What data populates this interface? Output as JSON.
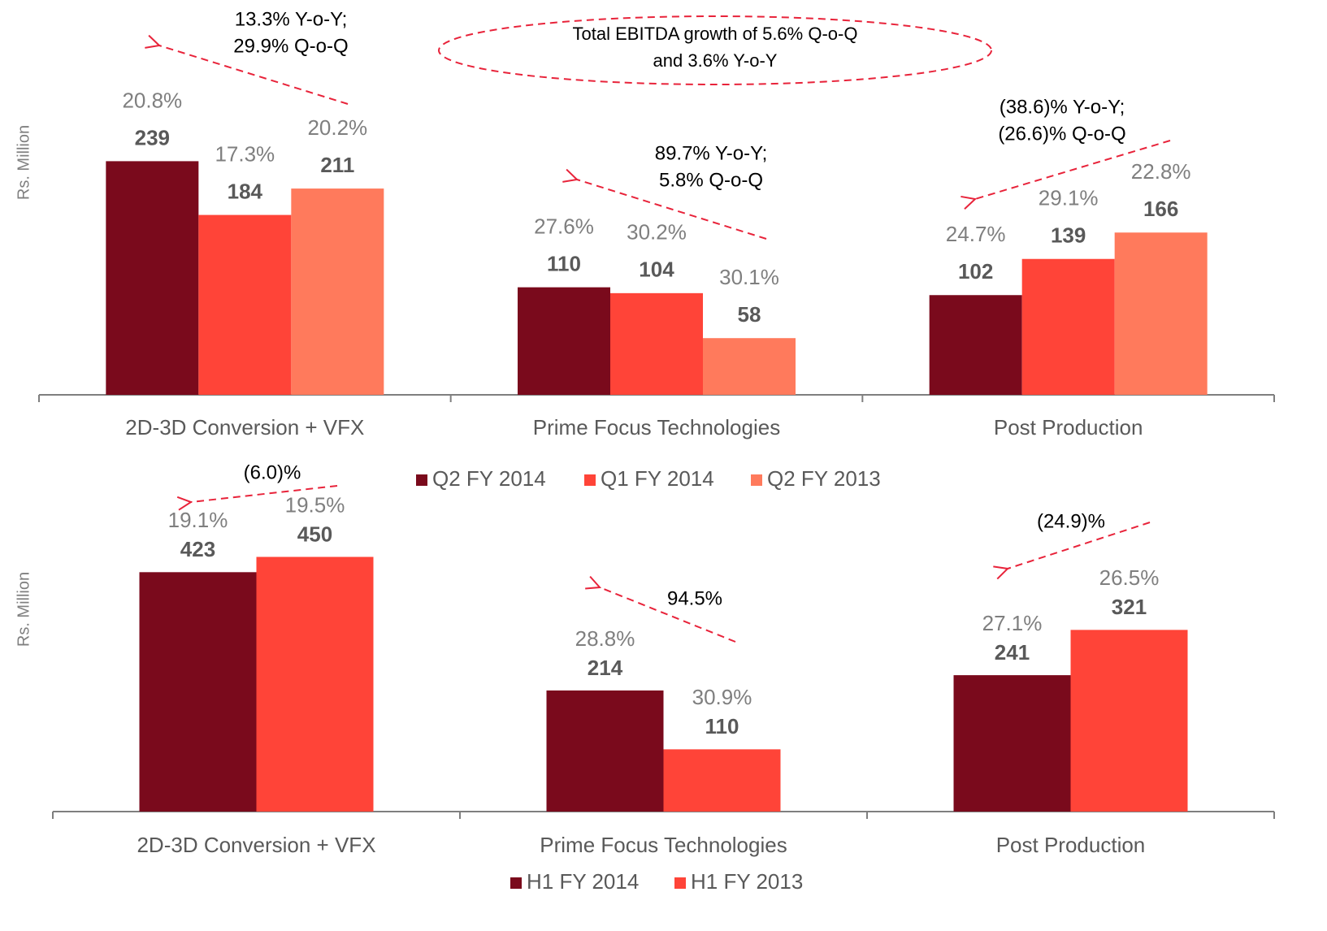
{
  "chart_data": [
    {
      "type": "bar",
      "y_label": "Rs. Million",
      "categories": [
        "2D-3D Conversion + VFX",
        "Prime Focus Technologies",
        "Post Production"
      ],
      "series": [
        {
          "name": "Q2 FY 2014",
          "color": "#7a0a1c",
          "values": [
            239,
            110,
            102
          ],
          "margin_labels": [
            "20.8%",
            "27.6%",
            "24.7%"
          ]
        },
        {
          "name": "Q1 FY 2014",
          "color": "#ff4438",
          "values": [
            184,
            104,
            139
          ],
          "margin_labels": [
            "17.3%",
            "30.2%",
            "29.1%"
          ]
        },
        {
          "name": "Q2 FY 2013",
          "color": "#ff7a5c",
          "values": [
            211,
            58,
            166
          ],
          "margin_labels": [
            "20.2%",
            "30.1%",
            "22.8%"
          ]
        }
      ],
      "ylim": [
        0,
        300
      ],
      "annotations": [
        {
          "lines": [
            "13.3% Y-o-Y;",
            "29.9% Q-o-Q"
          ]
        },
        {
          "lines": [
            "89.7% Y-o-Y;",
            "5.8% Q-o-Q"
          ]
        },
        {
          "lines": [
            "(38.6)% Y-o-Y;",
            "(26.6)% Q-o-Q"
          ]
        }
      ],
      "callout": {
        "lines": [
          "Total EBITDA growth of 5.6% Q-o-Q",
          "and 3.6% Y-o-Y"
        ]
      }
    },
    {
      "type": "bar",
      "y_label": "Rs. Million",
      "categories": [
        "2D-3D Conversion + VFX",
        "Prime Focus Technologies",
        "Post Production"
      ],
      "series": [
        {
          "name": "H1 FY 2014",
          "color": "#7a0a1c",
          "values": [
            423,
            214,
            241
          ],
          "margin_labels": [
            "19.1%",
            "28.8%",
            "27.1%"
          ]
        },
        {
          "name": "H1 FY 2013",
          "color": "#ff4438",
          "values": [
            450,
            110,
            321
          ],
          "margin_labels": [
            "19.5%",
            "30.9%",
            "26.5%"
          ]
        }
      ],
      "ylim": [
        0,
        600
      ],
      "annotations": [
        {
          "lines": [
            "(6.0)%"
          ]
        },
        {
          "lines": [
            "94.5%"
          ]
        },
        {
          "lines": [
            "(24.9)%"
          ]
        }
      ]
    }
  ]
}
